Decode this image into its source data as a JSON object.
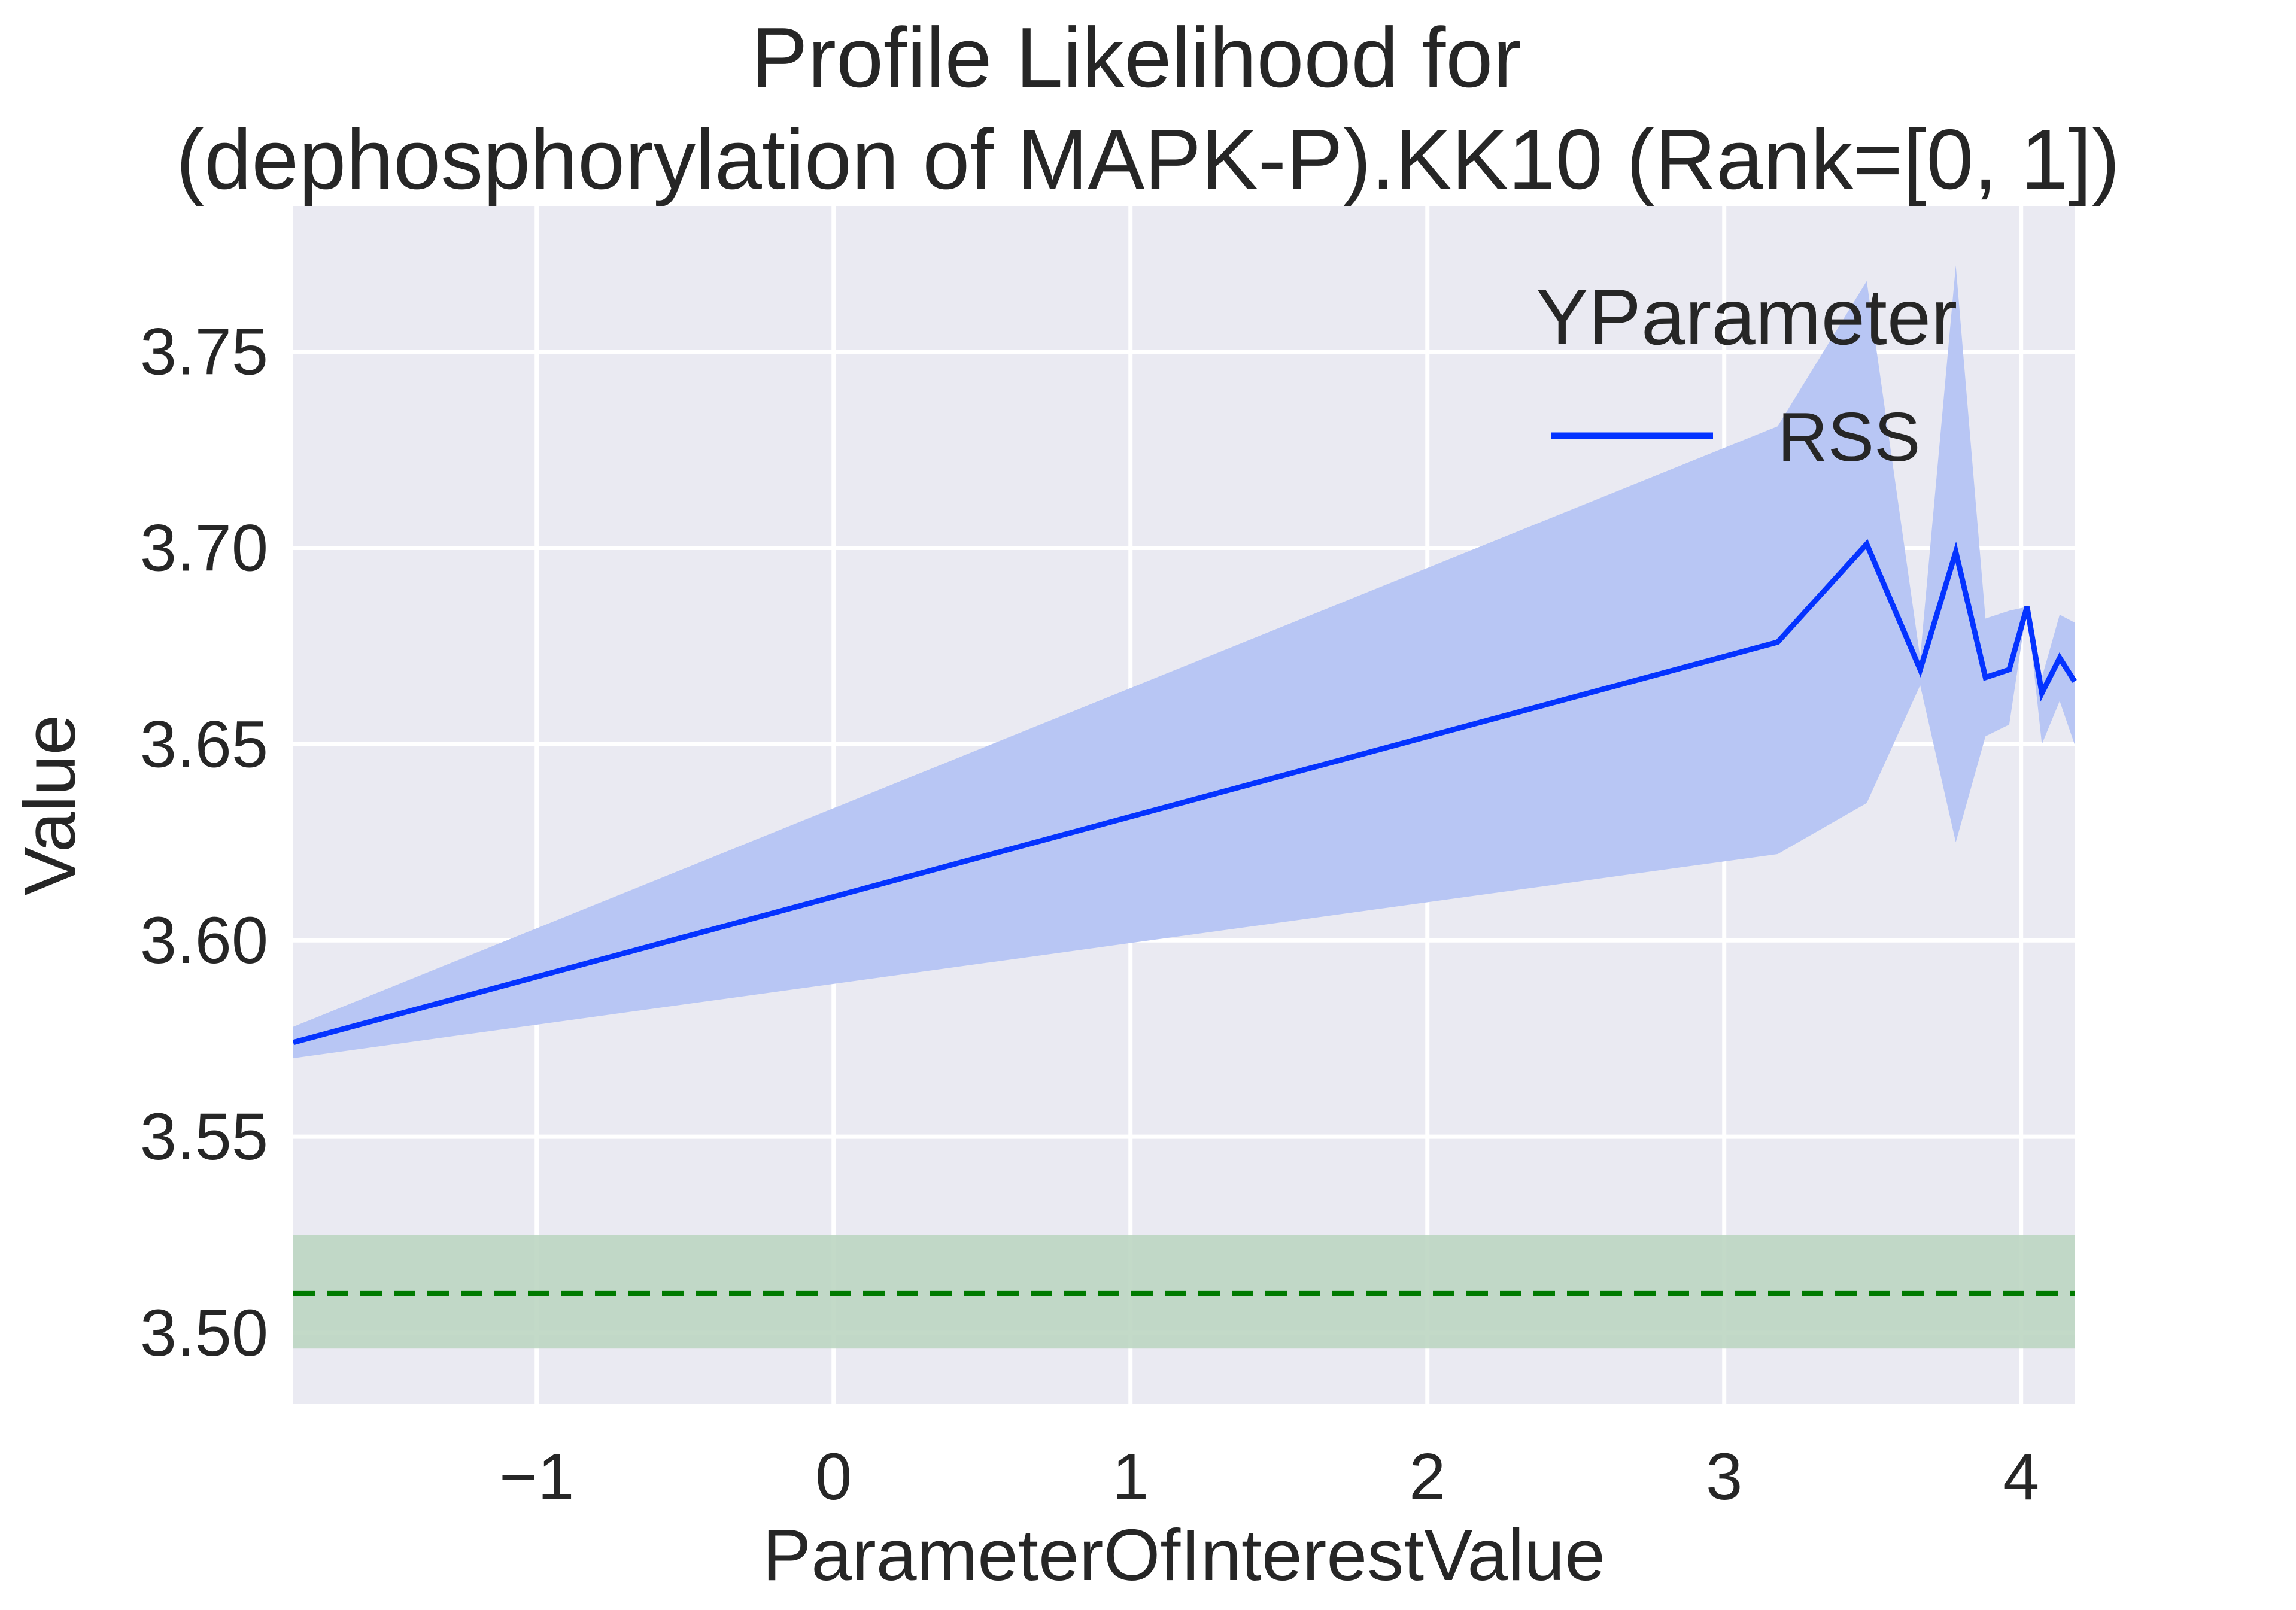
{
  "chart_data": {
    "type": "line",
    "title": "Profile Likelihood for\n(dephosphorylation of MAPK-P).KK10 (Rank=[0, 1])",
    "xlabel": "ParameterOfInterestValue",
    "ylabel": "Value",
    "xlim": [
      -1.82,
      4.18
    ],
    "ylim": [
      3.482,
      3.787
    ],
    "xticks": [
      -1,
      0,
      1,
      2,
      3,
      4
    ],
    "xtick_labels": [
      "−1",
      "0",
      "1",
      "2",
      "3",
      "4"
    ],
    "yticks": [
      3.5,
      3.55,
      3.6,
      3.65,
      3.7,
      3.75
    ],
    "ytick_labels": [
      "3.50",
      "3.55",
      "3.60",
      "3.65",
      "3.70",
      "3.75"
    ],
    "grid": true,
    "background": "#eaeaf2",
    "legend": {
      "title": "YParameter",
      "placement": "top-right",
      "entries": [
        "RSS"
      ]
    },
    "series": [
      {
        "name": "RSS",
        "color": "#0433ff",
        "band_color": "#b8c6f4",
        "x": [
          -1.82,
          3.18,
          3.48,
          3.66,
          3.78,
          3.88,
          3.96,
          4.02,
          4.07,
          4.13,
          4.18
        ],
        "y": [
          3.574,
          3.676,
          3.701,
          3.669,
          3.699,
          3.667,
          3.669,
          3.685,
          3.663,
          3.672,
          3.666
        ],
        "upper": [
          3.578,
          3.731,
          3.768,
          3.672,
          3.772,
          3.682,
          3.684,
          3.685,
          3.667,
          3.683,
          3.681
        ],
        "lower": [
          3.57,
          3.622,
          3.635,
          3.665,
          3.625,
          3.652,
          3.655,
          3.685,
          3.65,
          3.661,
          3.65
        ]
      }
    ],
    "reference": {
      "y": 3.51,
      "band": [
        3.496,
        3.525
      ],
      "color": "#007a00",
      "band_color": "#bcd6c2",
      "style": "dashed"
    }
  }
}
